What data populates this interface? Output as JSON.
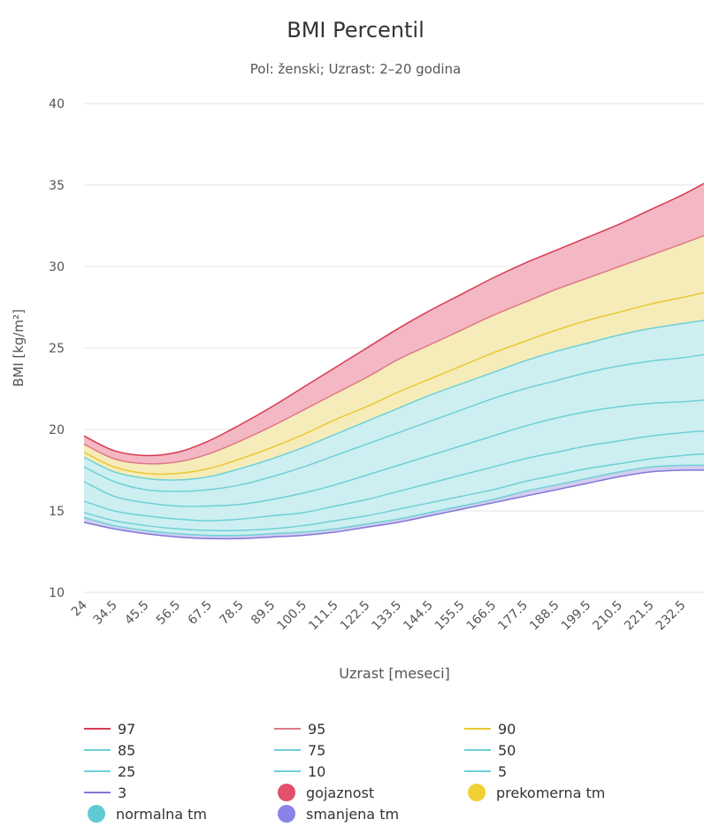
{
  "chart_data": {
    "type": "area",
    "title": "BMI Percentil",
    "subtitle": "Pol: ženski; Uzrast: 2–20 godina",
    "xlabel": "Uzrast [meseci]",
    "ylabel": "BMI [kg/m²]",
    "ylim": [
      10,
      40
    ],
    "yticks": [
      "10",
      "15",
      "20",
      "25",
      "30",
      "35",
      "40"
    ],
    "xlim": [
      24,
      240
    ],
    "xticks": [
      "24",
      "34.5",
      "45.5",
      "56.5",
      "67.5",
      "78.5",
      "89.5",
      "100.5",
      "111.5",
      "122.5",
      "133.5",
      "144.5",
      "155.5",
      "166.5",
      "177.5",
      "188.5",
      "199.5",
      "210.5",
      "221.5",
      "232.5"
    ],
    "grid": true,
    "legend_position": "bottom",
    "x": [
      24,
      34.5,
      45.5,
      56.5,
      67.5,
      78.5,
      89.5,
      100.5,
      111.5,
      122.5,
      133.5,
      144.5,
      155.5,
      166.5,
      177.5,
      188.5,
      199.5,
      210.5,
      221.5,
      232.5,
      240
    ],
    "series": [
      {
        "name": "97",
        "color": "#d93a52",
        "values": [
          19.6,
          18.7,
          18.4,
          18.6,
          19.3,
          20.3,
          21.4,
          22.6,
          23.8,
          25.0,
          26.2,
          27.3,
          28.3,
          29.3,
          30.2,
          31.0,
          31.8,
          32.6,
          33.5,
          34.4,
          35.1
        ]
      },
      {
        "name": "95",
        "color": "#e0788a",
        "values": [
          19.1,
          18.2,
          17.9,
          18.0,
          18.5,
          19.3,
          20.2,
          21.2,
          22.2,
          23.2,
          24.3,
          25.2,
          26.1,
          27.0,
          27.8,
          28.6,
          29.3,
          30.0,
          30.7,
          31.4,
          31.9
        ]
      },
      {
        "name": "90",
        "color": "#e8c935",
        "values": [
          18.6,
          17.7,
          17.3,
          17.3,
          17.6,
          18.2,
          18.9,
          19.7,
          20.6,
          21.4,
          22.3,
          23.1,
          23.9,
          24.7,
          25.4,
          26.1,
          26.7,
          27.2,
          27.7,
          28.1,
          28.4
        ]
      },
      {
        "name": "85",
        "color": "#6fd0d6",
        "values": [
          18.3,
          17.4,
          17.0,
          16.9,
          17.1,
          17.6,
          18.2,
          18.9,
          19.7,
          20.5,
          21.3,
          22.1,
          22.8,
          23.5,
          24.2,
          24.8,
          25.3,
          25.8,
          26.2,
          26.5,
          26.7
        ]
      },
      {
        "name": "75",
        "color": "#6fd0d6",
        "values": [
          17.7,
          16.8,
          16.3,
          16.2,
          16.3,
          16.6,
          17.1,
          17.7,
          18.4,
          19.1,
          19.8,
          20.5,
          21.2,
          21.9,
          22.5,
          23.0,
          23.5,
          23.9,
          24.2,
          24.4,
          24.6
        ]
      },
      {
        "name": "50",
        "color": "#6fd0d6",
        "values": [
          16.8,
          15.9,
          15.5,
          15.3,
          15.3,
          15.4,
          15.7,
          16.1,
          16.6,
          17.2,
          17.8,
          18.4,
          19.0,
          19.6,
          20.2,
          20.7,
          21.1,
          21.4,
          21.6,
          21.7,
          21.8
        ]
      },
      {
        "name": "25",
        "color": "#6fd0d6",
        "values": [
          15.6,
          15.0,
          14.7,
          14.5,
          14.4,
          14.5,
          14.7,
          14.9,
          15.3,
          15.7,
          16.2,
          16.7,
          17.2,
          17.7,
          18.2,
          18.6,
          19.0,
          19.3,
          19.6,
          19.8,
          19.9
        ]
      },
      {
        "name": "10",
        "color": "#6fd0d6",
        "values": [
          14.9,
          14.4,
          14.1,
          13.9,
          13.8,
          13.8,
          13.9,
          14.1,
          14.4,
          14.7,
          15.1,
          15.5,
          15.9,
          16.3,
          16.8,
          17.2,
          17.6,
          17.9,
          18.2,
          18.4,
          18.5
        ]
      },
      {
        "name": "5",
        "color": "#6fd0d6",
        "values": [
          14.6,
          14.1,
          13.8,
          13.6,
          13.5,
          13.5,
          13.6,
          13.7,
          13.9,
          14.2,
          14.5,
          14.9,
          15.3,
          15.7,
          16.2,
          16.6,
          17.0,
          17.4,
          17.7,
          17.8,
          17.8
        ]
      },
      {
        "name": "3",
        "color": "#8078d8",
        "values": [
          14.3,
          13.9,
          13.6,
          13.4,
          13.3,
          13.3,
          13.4,
          13.5,
          13.7,
          14.0,
          14.3,
          14.7,
          15.1,
          15.5,
          15.9,
          16.3,
          16.7,
          17.1,
          17.4,
          17.5,
          17.5
        ]
      }
    ],
    "bands": [
      {
        "name": "gojaznost",
        "color": "#e2506a",
        "fill": "#f3b8c3",
        "upper": "97",
        "lower": "95"
      },
      {
        "name": "prekomerna tm",
        "color": "#f0d033",
        "fill": "#f6ecb9",
        "upper": "95",
        "lower": "85"
      },
      {
        "name": "normalna tm",
        "color": "#5fcad4",
        "fill": "#cdeff2",
        "upper": "85",
        "lower": "5"
      },
      {
        "name": "smanjena tm",
        "color": "#8a82e6",
        "fill": "#d2ceef",
        "upper": "5",
        "lower": "3"
      }
    ]
  }
}
